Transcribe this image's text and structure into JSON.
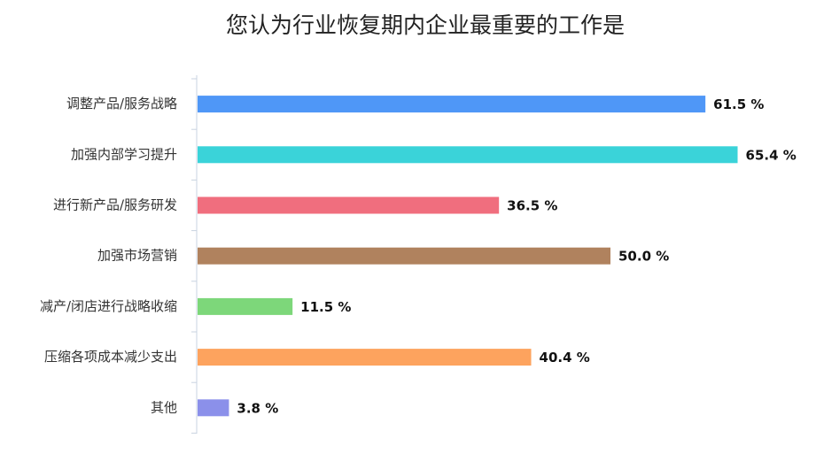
{
  "chart_data": {
    "type": "bar",
    "orientation": "horizontal",
    "title": "您认为行业恢复期内企业最重要的工作是",
    "categories": [
      "调整产品/服务战略",
      "加强内部学习提升",
      "进行新产品/服务研发",
      "加强市场营销",
      "减产/闭店进行战略收缩",
      "压缩各项成本减少支出",
      "其他"
    ],
    "values": [
      61.5,
      65.4,
      36.5,
      50.0,
      11.5,
      40.4,
      3.8
    ],
    "value_labels": [
      "61.5 %",
      "65.4 %",
      "36.5 %",
      "50.0 %",
      "11.5 %",
      "40.4 %",
      "3.8 %"
    ],
    "colors": [
      "#4f97f7",
      "#3ad3d9",
      "#f06e7e",
      "#b0825e",
      "#7dd77a",
      "#fda35e",
      "#8b90ea"
    ]
  }
}
